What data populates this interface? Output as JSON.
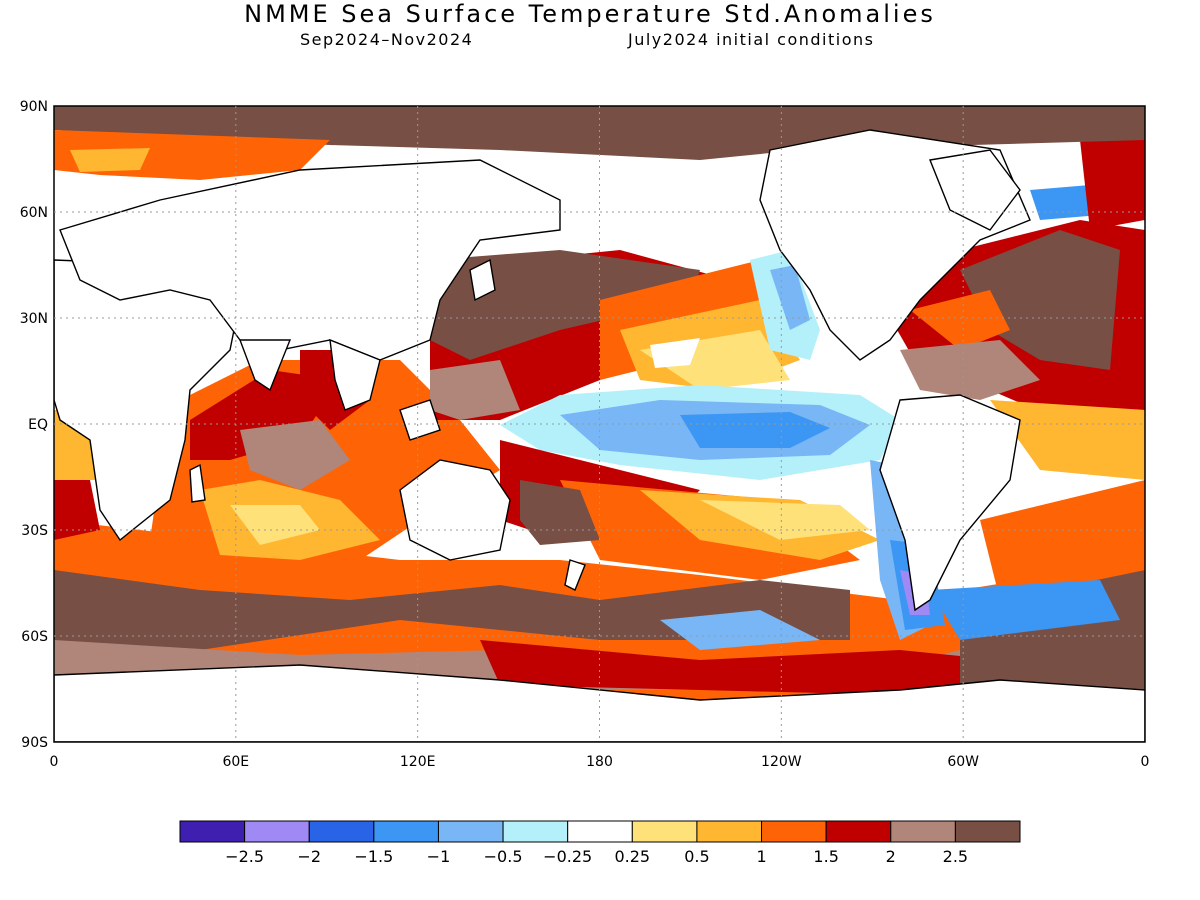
{
  "title": "NMME Sea Surface Temperature Std.Anomalies",
  "subtitle_left": "Sep2024–Nov2024",
  "subtitle_right": "July2024 initial conditions",
  "map": {
    "lat_ticks": [
      "90N",
      "60N",
      "30N",
      "EQ",
      "30S",
      "60S",
      "90S"
    ],
    "lon_ticks": [
      "0",
      "60E",
      "120E",
      "180",
      "120W",
      "60W",
      "0"
    ],
    "lat_range": [
      -90,
      90
    ],
    "lon_range": [
      0,
      360
    ],
    "grid": "dotted"
  },
  "colorbar": {
    "colors": [
      "#3e1fb0",
      "#9f8af5",
      "#2a64e6",
      "#3c96f3",
      "#78b6f5",
      "#b4f0fa",
      "#ffffff",
      "#ffe17a",
      "#ffb631",
      "#fe6405",
      "#c00000",
      "#b0867a",
      "#774f44"
    ],
    "labels": [
      "−2.5",
      "−2",
      "−1.5",
      "−1",
      "−0.5",
      "−0.25",
      "0.25",
      "0.5",
      "1",
      "1.5",
      "2",
      "2.5"
    ]
  },
  "colors": {
    "land": "#ffffff",
    "neutral": "#ffffff",
    "warm_weak": "#ffe17a",
    "warm_mod": "#ffb631",
    "warm_strong": "#fe6405",
    "warm_vstrong": "#c00000",
    "warm_ext1": "#b0867a",
    "warm_ext2": "#774f44",
    "cool_weak": "#b4f0fa",
    "cool_mod": "#78b6f5",
    "cool_strong": "#3c96f3",
    "cool_vstrong": "#2a64e6",
    "cool_ext": "#9f8af5"
  }
}
